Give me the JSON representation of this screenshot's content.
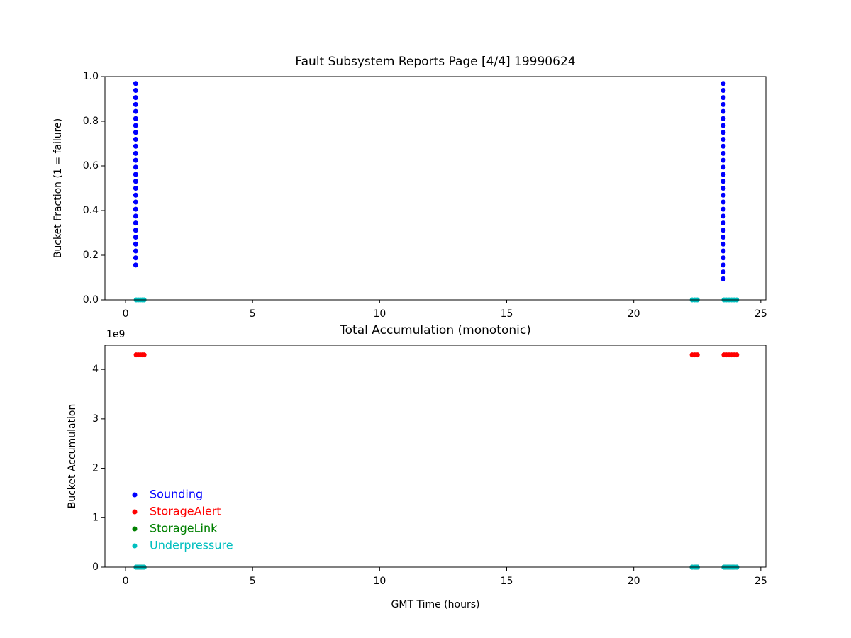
{
  "chart_data": [
    {
      "type": "scatter",
      "title": "Fault Subsystem Reports Page [4/4] 19990624",
      "y_label": "Bucket Fraction (1 = failure)",
      "xlim": [
        -0.81,
        25.2
      ],
      "xticks": [
        0,
        5,
        10,
        15,
        20,
        25
      ],
      "ylim": [
        0,
        1
      ],
      "yticks": [
        {
          "value": 0,
          "label": "0.0"
        },
        {
          "value": 0.2,
          "label": "0.2"
        },
        {
          "value": 0.4,
          "label": "0.4"
        },
        {
          "value": 0.6,
          "label": "0.6"
        },
        {
          "value": 0.8,
          "label": "0.8"
        },
        {
          "value": 1,
          "label": "1.0"
        }
      ],
      "series": [
        {
          "color": "#0000ff",
          "x": [
            0.4,
            0.4,
            0.4,
            0.4,
            0.4,
            0.4,
            0.4,
            0.4,
            0.4,
            0.4,
            0.4,
            0.4,
            0.4,
            0.4,
            0.4,
            0.4,
            0.4,
            0.4,
            0.4,
            0.4,
            0.4,
            0.4,
            0.4,
            0.4,
            0.4,
            0.4,
            0.4,
            23.52,
            23.52,
            23.52,
            23.52,
            23.52,
            23.52,
            23.52,
            23.52,
            23.52,
            23.52,
            23.52,
            23.52,
            23.52,
            23.52,
            23.52,
            23.52,
            23.52,
            23.52,
            23.52,
            23.52,
            23.52,
            23.52,
            23.52,
            23.52,
            23.52,
            23.52,
            23.52,
            23.52,
            23.52
          ],
          "values": [
            0.156,
            0.188,
            0.219,
            0.25,
            0.281,
            0.312,
            0.344,
            0.375,
            0.406,
            0.438,
            0.469,
            0.5,
            0.531,
            0.562,
            0.594,
            0.625,
            0.656,
            0.688,
            0.719,
            0.75,
            0.781,
            0.812,
            0.844,
            0.875,
            0.906,
            0.938,
            0.969,
            0.094,
            0.125,
            0.156,
            0.188,
            0.219,
            0.25,
            0.281,
            0.312,
            0.344,
            0.375,
            0.406,
            0.438,
            0.469,
            0.5,
            0.531,
            0.562,
            0.594,
            0.625,
            0.656,
            0.688,
            0.719,
            0.75,
            0.781,
            0.812,
            0.844,
            0.875,
            0.906,
            0.938,
            0.969
          ]
        },
        {
          "color": "#00bfbf",
          "x": [
            0.42,
            0.5,
            0.58,
            0.66,
            0.73,
            22.3,
            22.4,
            22.5,
            23.55,
            23.65,
            23.75,
            23.85,
            23.95,
            24.05
          ],
          "values": [
            0,
            0,
            0,
            0,
            0,
            0,
            0,
            0,
            0,
            0,
            0,
            0,
            0,
            0
          ]
        }
      ]
    },
    {
      "type": "scatter",
      "title": "Total Accumulation (monotonic)",
      "x_label": "GMT Time (hours)",
      "y_label": "Bucket Accumulation",
      "y_offset_label": "1e9",
      "xlim": [
        -0.81,
        25.2
      ],
      "xticks": [
        0,
        5,
        10,
        15,
        20,
        25
      ],
      "ylim": [
        0,
        4490000000
      ],
      "yticks": [
        {
          "value": 0,
          "label": "0"
        },
        {
          "value": 1000000000,
          "label": "1"
        },
        {
          "value": 2000000000,
          "label": "2"
        },
        {
          "value": 3000000000,
          "label": "3"
        },
        {
          "value": 4000000000,
          "label": "4"
        }
      ],
      "legend": "lower left",
      "series": [
        {
          "name": "Sounding",
          "color": "#0000ff",
          "x": [
            0.42,
            0.5,
            0.58,
            0.66,
            0.73,
            22.3,
            22.4,
            22.5,
            23.55,
            23.65,
            23.75,
            23.85,
            23.95,
            24.05
          ],
          "values": [
            0,
            0,
            0,
            0,
            0,
            0,
            0,
            0,
            0,
            0,
            0,
            0,
            0,
            0
          ]
        },
        {
          "name": "StorageAlert",
          "color": "#ff0000",
          "x": [
            0.42,
            0.5,
            0.58,
            0.66,
            0.73,
            22.3,
            22.4,
            22.5,
            23.55,
            23.65,
            23.75,
            23.85,
            23.95,
            24.05
          ],
          "values": [
            4294967295,
            4294967295,
            4294967295,
            4294967295,
            4294967295,
            4294967295,
            4294967295,
            4294967295,
            4294967295,
            4294967295,
            4294967295,
            4294967295,
            4294967295,
            4294967295
          ]
        },
        {
          "name": "StorageLink",
          "color": "#008000",
          "x": [
            0.42,
            0.5,
            0.58,
            0.66,
            0.73,
            22.3,
            22.4,
            22.5,
            23.55,
            23.65,
            23.75,
            23.85,
            23.95,
            24.05
          ],
          "values": [
            0,
            0,
            0,
            0,
            0,
            0,
            0,
            0,
            0,
            0,
            0,
            0,
            0,
            0
          ]
        },
        {
          "name": "Underpressure",
          "color": "#00bfbf",
          "x": [
            0.42,
            0.5,
            0.58,
            0.66,
            0.73,
            22.3,
            22.4,
            22.5,
            23.55,
            23.65,
            23.75,
            23.85,
            23.95,
            24.05
          ],
          "values": [
            0,
            0,
            0,
            0,
            0,
            0,
            0,
            0,
            0,
            0,
            0,
            0,
            0,
            0
          ]
        }
      ]
    }
  ]
}
